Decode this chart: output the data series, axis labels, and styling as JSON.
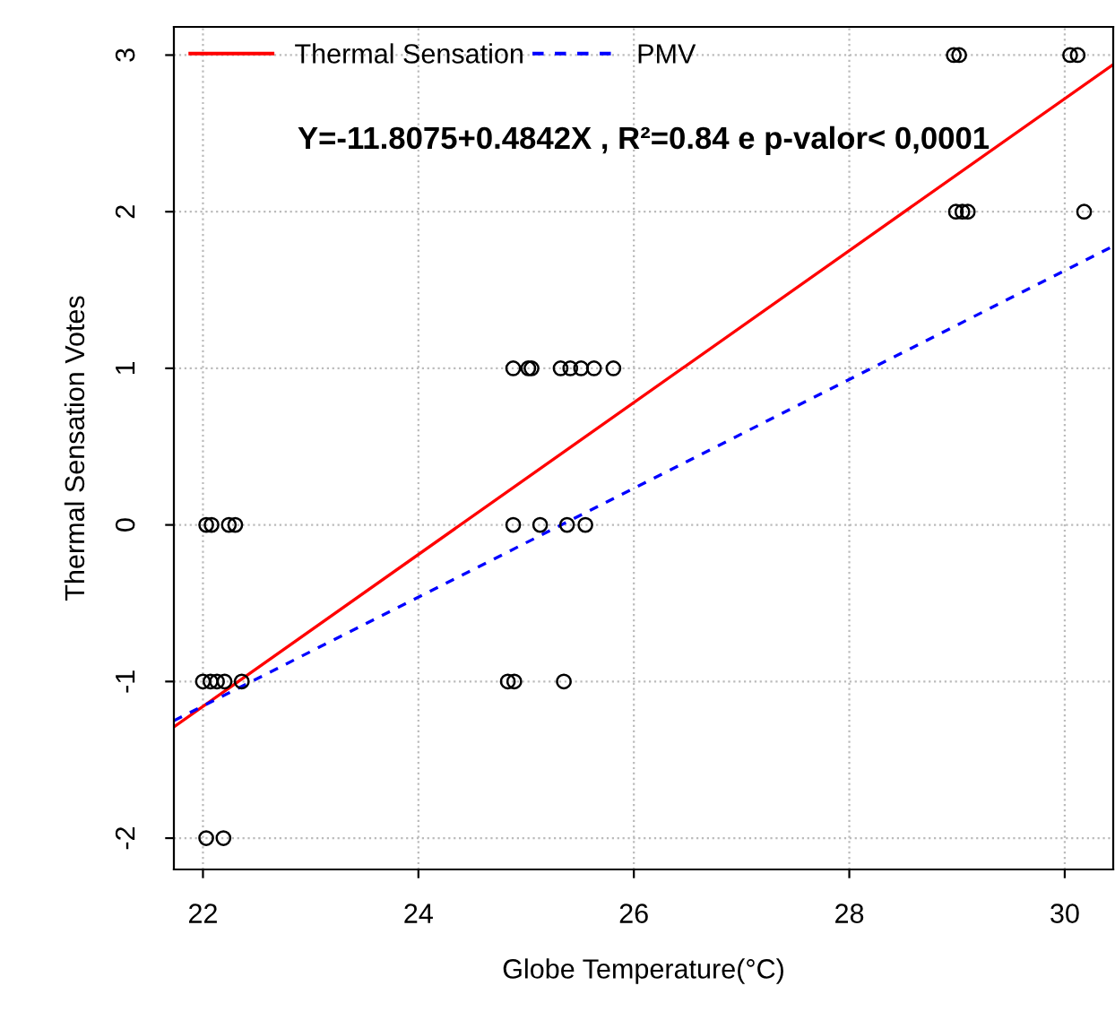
{
  "chart_data": {
    "type": "scatter",
    "xlabel": "Globe Temperature(°C)",
    "ylabel": "Thermal Sensation Votes",
    "annotations": [
      "Y=-11.8075+0.4842X , R²=0.84 e p-valor< 0,0001"
    ],
    "series": [
      {
        "color": "#000000",
        "marker": "circle",
        "x": [
          28.97,
          29.02,
          30.05,
          30.12,
          28.99,
          29.05,
          29.1,
          30.18,
          24.88,
          25.02,
          25.05,
          25.32,
          25.41,
          25.51,
          25.63,
          25.81,
          22.03,
          22.08,
          22.24,
          22.3,
          24.88,
          25.13,
          25.38,
          25.55,
          22.0,
          22.07,
          22.13,
          22.2,
          22.36,
          24.83,
          24.89,
          25.35,
          22.03,
          22.19
        ],
        "values": [
          3,
          3,
          3,
          3,
          2,
          2,
          2,
          2,
          1,
          1,
          1,
          1,
          1,
          1,
          1,
          1,
          0,
          0,
          0,
          0,
          0,
          0,
          0,
          0,
          -1,
          -1,
          -1,
          -1,
          -1,
          -1,
          -1,
          -1,
          -2,
          -2
        ]
      },
      {
        "type": "line",
        "name": "Thermal Sensation",
        "color": "#ff0000",
        "line_style": "solid",
        "x": [
          21.73,
          30.45
        ],
        "values": [
          -1.29,
          2.94
        ]
      },
      {
        "type": "line",
        "name": "PMV",
        "color": "#0000ff",
        "line_style": "dotted",
        "x": [
          21.73,
          30.45
        ],
        "values": [
          -1.25,
          1.78
        ]
      }
    ],
    "xlim": [
      21.73,
      30.45
    ],
    "ylim": [
      -2.2,
      3.18
    ],
    "xticks": [
      22,
      24,
      26,
      28,
      30
    ],
    "yticks": [
      -2,
      -1,
      0,
      1,
      2,
      3
    ],
    "grid": true,
    "legend": "top left"
  }
}
